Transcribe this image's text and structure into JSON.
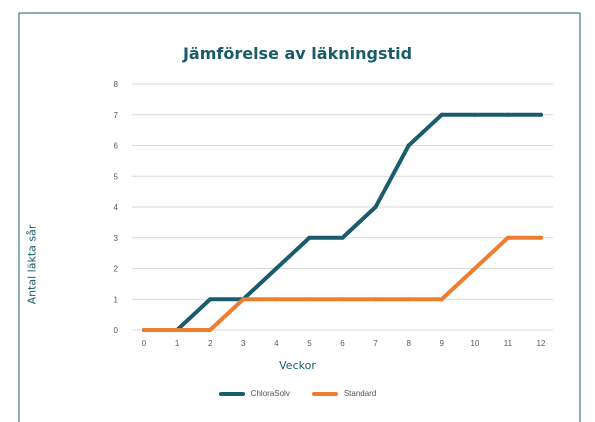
{
  "colors": {
    "frame": "#1a5c6b",
    "title": "#1a5c6b",
    "axis_label": "#1a5c6b",
    "grid": "#d9d9d9",
    "tick": "#595959"
  },
  "chart_data": {
    "type": "line",
    "title": "Jämförelse av läkningstid",
    "xlabel": "Veckor",
    "ylabel": "Antal läkta sår",
    "x": [
      0,
      1,
      2,
      3,
      4,
      5,
      6,
      7,
      8,
      9,
      10,
      11,
      12
    ],
    "xlim": [
      0,
      12
    ],
    "ylim": [
      0,
      8
    ],
    "yticks": [
      0,
      1,
      2,
      3,
      4,
      5,
      6,
      7,
      8
    ],
    "grid": true,
    "legend_position": "bottom",
    "series": [
      {
        "name": "ChloraSolv",
        "color": "#1a5c6b",
        "values": [
          0,
          0,
          1,
          1,
          2,
          3,
          3,
          4,
          6,
          7,
          7,
          7,
          7
        ]
      },
      {
        "name": "Standard",
        "color": "#ed7d31",
        "values": [
          0,
          0,
          0,
          1,
          1,
          1,
          1,
          1,
          1,
          1,
          2,
          3,
          3
        ]
      }
    ]
  }
}
